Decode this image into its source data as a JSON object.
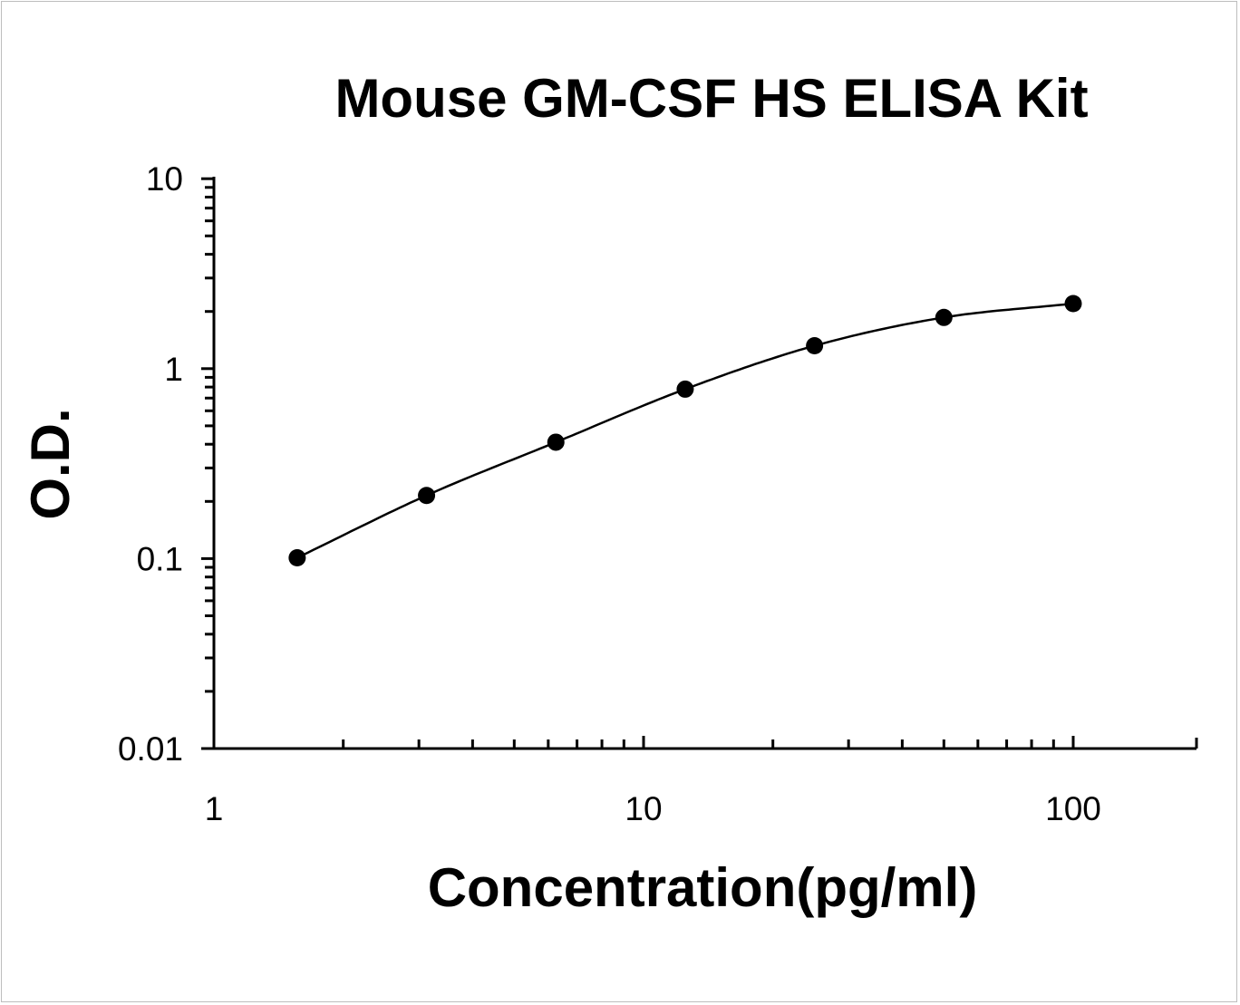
{
  "chart_data": {
    "type": "scatter",
    "title": "Mouse GM-CSF HS ELISA Kit",
    "xlabel": "Concentration(pg/ml)",
    "ylabel": "O.D.",
    "x_scale": "log",
    "y_scale": "log",
    "xlim": [
      1,
      200
    ],
    "ylim": [
      0.01,
      10
    ],
    "x_ticks": [
      "1",
      "10",
      "100"
    ],
    "y_ticks": [
      "10",
      "1",
      "0.1",
      "0.01"
    ],
    "grid": false,
    "legend": "none",
    "fitted_curve": true,
    "series": [
      {
        "x": [
          1.5625,
          3.125,
          6.25,
          12.5,
          25,
          50,
          100
        ],
        "y": [
          0.101,
          0.215,
          0.41,
          0.78,
          1.32,
          1.86,
          2.2
        ]
      }
    ],
    "colors": {
      "line": "#000000",
      "marker": "#000000",
      "axis": "#000000"
    }
  }
}
